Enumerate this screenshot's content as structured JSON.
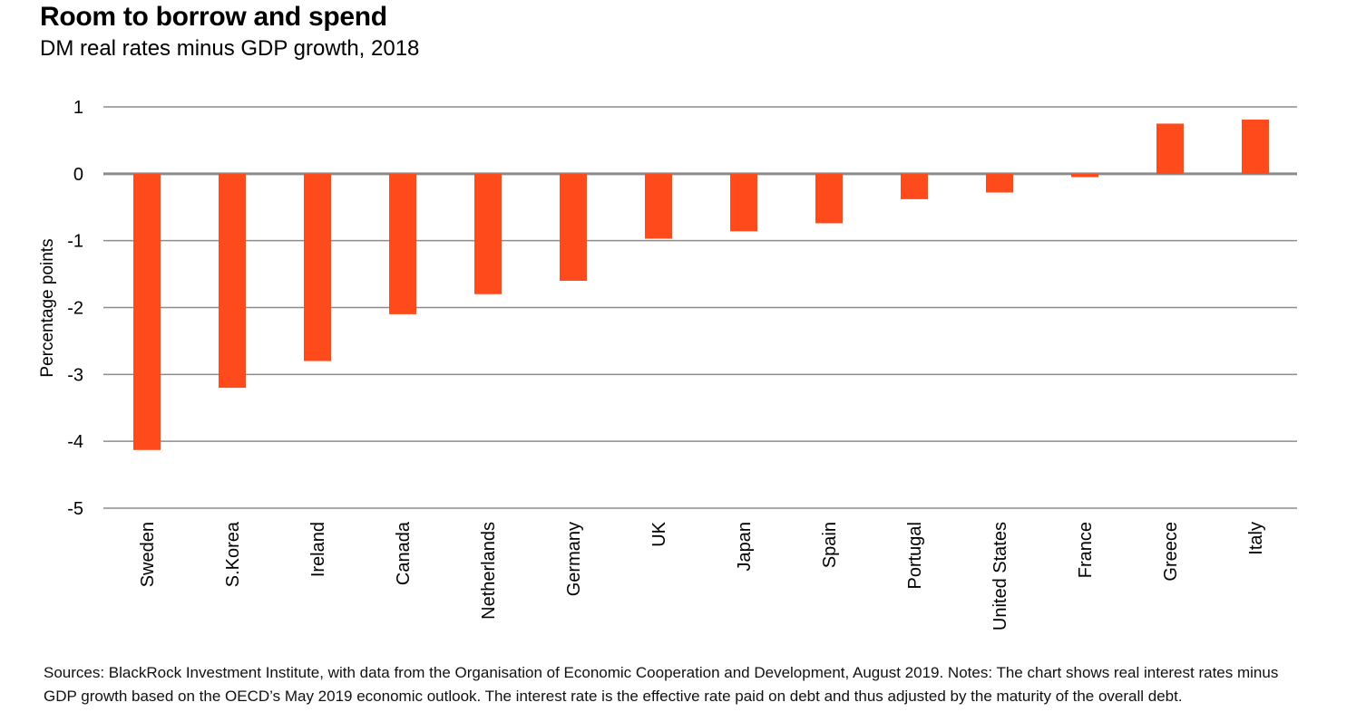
{
  "title": "Room to borrow and spend",
  "subtitle": "DM real rates minus GDP growth, 2018",
  "chart_data": {
    "type": "bar",
    "title": "Room to borrow and spend",
    "subtitle": "DM real rates minus GDP growth, 2018",
    "xlabel": "",
    "ylabel": "Percentage points",
    "ylim": [
      -5,
      1
    ],
    "yticks": [
      1,
      0,
      -1,
      -2,
      -3,
      -4,
      -5
    ],
    "grid": true,
    "categories": [
      "Sweden",
      "S.Korea",
      "Ireland",
      "Canada",
      "Netherlands",
      "Germany",
      "UK",
      "Japan",
      "Spain",
      "Portugal",
      "United States",
      "France",
      "Greece",
      "Italy"
    ],
    "values": [
      -4.13,
      -3.2,
      -2.8,
      -2.1,
      -1.8,
      -1.6,
      -0.97,
      -0.86,
      -0.74,
      -0.38,
      -0.28,
      -0.05,
      0.75,
      0.81
    ],
    "bar_color": "#ff4a1c",
    "grid_color": "#8c8c8c"
  },
  "footer": {
    "line1": "Sources: BlackRock Investment Institute, with data from the Organisation  of  Economic Cooperation and Development, August 2019. Notes: The chart shows real interest rates minus",
    "line2": "GDP growth based on the OECD’s May 2019 economic outlook. The interest rate is the effective rate paid on debt and thus adjusted by the maturity of the overall debt."
  }
}
